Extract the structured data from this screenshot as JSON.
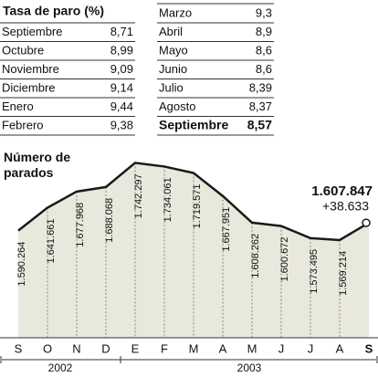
{
  "table": {
    "title": "Tasa de paro (%)",
    "left_rows": [
      [
        "Septiembre",
        "8,71"
      ],
      [
        "Octubre",
        "8,99"
      ],
      [
        "Noviembre",
        "9,09"
      ],
      [
        "Diciembre",
        "9,14"
      ],
      [
        "Enero",
        "9,44"
      ],
      [
        "Febrero",
        "9,38"
      ]
    ],
    "right_rows": [
      [
        "Marzo",
        "9,3"
      ],
      [
        "Abril",
        "8,9"
      ],
      [
        "Mayo",
        "8,6"
      ],
      [
        "Junio",
        "8,6"
      ],
      [
        "Julio",
        "8,39"
      ],
      [
        "Agosto",
        "8,37"
      ],
      [
        "Septiembre",
        "8,57"
      ]
    ]
  },
  "chart_data": {
    "type": "area",
    "title": "Número de parados",
    "categories": [
      "S",
      "O",
      "N",
      "D",
      "E",
      "F",
      "M",
      "A",
      "M",
      "J",
      "J",
      "A",
      "S"
    ],
    "values": [
      1590264,
      1641661,
      1677968,
      1688068,
      1742297,
      1734061,
      1719571,
      1667951,
      1608262,
      1600672,
      1573495,
      1569214,
      1607847
    ],
    "value_labels": [
      "1.590.264",
      "1.641.661",
      "1.677.968",
      "1.688.068",
      "1.742.297",
      "1.734.061",
      "1.719.571",
      "1.667.951",
      "1.608.262",
      "1.600.672",
      "1.573.495",
      "1.569.214",
      "1.607.847"
    ],
    "annotation": "+38.633",
    "year_groups": [
      "2002",
      "2003"
    ],
    "ylim": [
      1350000,
      1780000
    ],
    "color": "#1a1a1a",
    "fill": "#e9e8dc"
  }
}
